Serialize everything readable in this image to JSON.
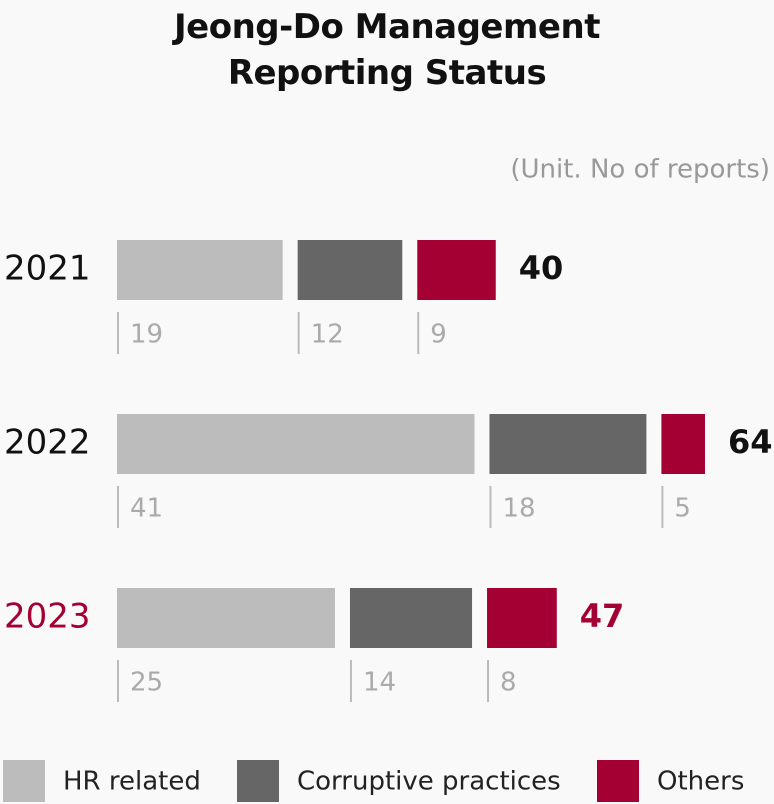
{
  "chart_data": {
    "type": "bar",
    "orientation": "horizontal",
    "stacked": true,
    "title": "Jeong-Do Management Reporting Status",
    "subtitle": "(Unit. No of reports)",
    "categories": [
      "2021",
      "2022",
      "2023"
    ],
    "category_colors": [
      "#111111",
      "#111111",
      "#a50034"
    ],
    "series": [
      {
        "name": "HR related",
        "color": "#bcbcbc",
        "values": [
          19,
          41,
          25
        ]
      },
      {
        "name": "Corruptive practices",
        "color": "#666666",
        "values": [
          12,
          18,
          14
        ]
      },
      {
        "name": "Others",
        "color": "#a50034",
        "values": [
          9,
          5,
          8
        ]
      }
    ],
    "totals": [
      40,
      64,
      47
    ]
  }
}
